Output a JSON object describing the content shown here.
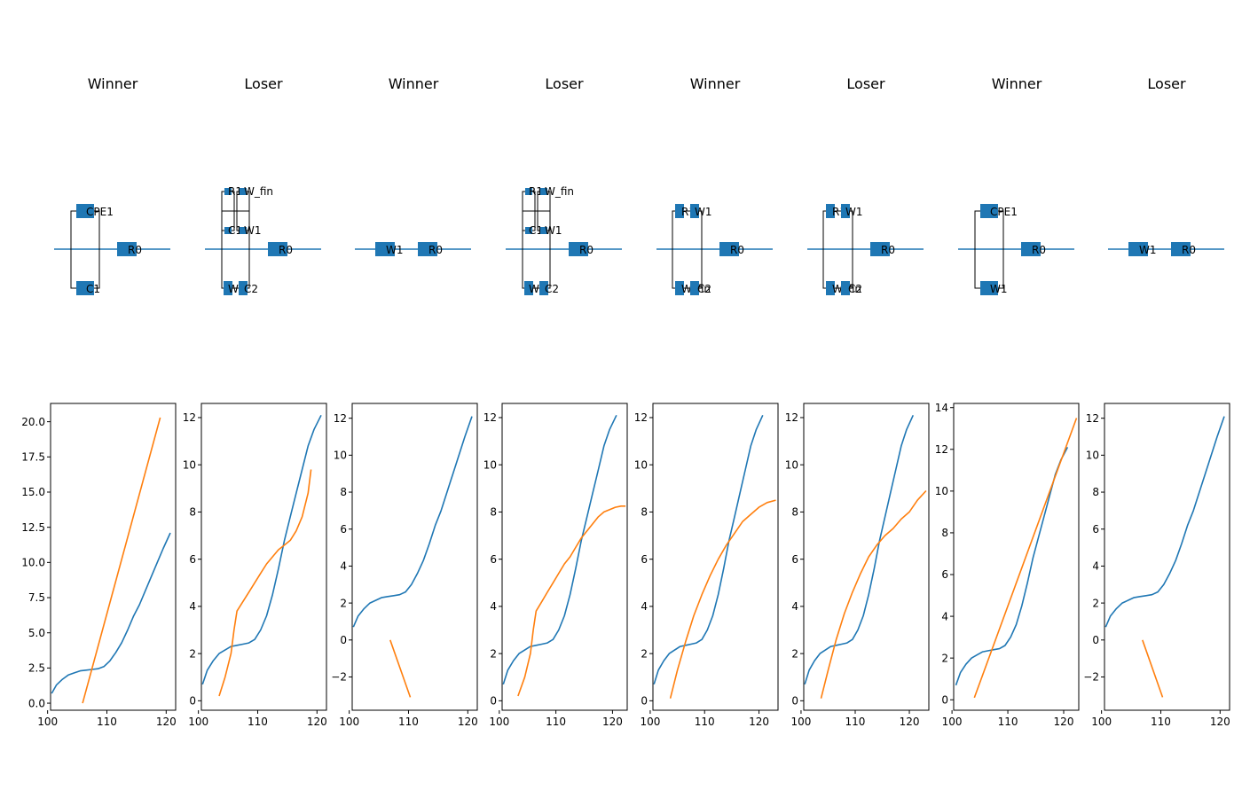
{
  "figure": {
    "colors": {
      "series_a": "#1f77b4",
      "series_b": "#ff7f0e"
    }
  },
  "columns": [
    {
      "title": "Winner",
      "circuit": {
        "topology": "series",
        "elements": [
          {
            "type": "parallel",
            "top": [
              {
                "label": "CPE1"
              }
            ],
            "bottom": [
              {
                "label": "C1"
              }
            ]
          },
          {
            "type": "element",
            "label": "R0"
          }
        ]
      }
    },
    {
      "title": "Loser",
      "circuit": {
        "topology": "series",
        "elements": [
          {
            "type": "parallel",
            "top": [
              {
                "type": "parallel",
                "top": [
                  {
                    "label": "R1"
                  },
                  {
                    "label": "W_fin"
                  }
                ],
                "bottom": [
                  {
                    "label": "C1"
                  },
                  {
                    "label": "W1"
                  }
                ]
              }
            ],
            "bottom": [
              {
                "label": "W2"
              },
              {
                "label": "C2"
              }
            ]
          },
          {
            "type": "element",
            "label": "R0"
          }
        ]
      }
    },
    {
      "title": "Winner",
      "circuit": {
        "topology": "series",
        "elements": [
          {
            "type": "element",
            "label": "W1"
          },
          {
            "type": "element",
            "label": "R0"
          }
        ]
      }
    },
    {
      "title": "Loser",
      "circuit": {
        "topology": "series",
        "elements": [
          {
            "type": "parallel",
            "top": [
              {
                "type": "parallel",
                "top": [
                  {
                    "label": "R1"
                  },
                  {
                    "label": "W_fin"
                  }
                ],
                "bottom": [
                  {
                    "label": "C1"
                  },
                  {
                    "label": "W1"
                  }
                ]
              }
            ],
            "bottom": [
              {
                "label": "W2"
              },
              {
                "label": "C2"
              }
            ]
          },
          {
            "type": "element",
            "label": "R0"
          }
        ]
      }
    },
    {
      "title": "Winner",
      "circuit": {
        "topology": "series",
        "elements": [
          {
            "type": "parallel",
            "top": [
              {
                "label": "R1"
              },
              {
                "label": "W1"
              }
            ],
            "bottom": [
              {
                "label": "W_fin"
              },
              {
                "label": "C2"
              }
            ]
          },
          {
            "type": "element",
            "label": "R0"
          }
        ]
      }
    },
    {
      "title": "Loser",
      "circuit": {
        "topology": "series",
        "elements": [
          {
            "type": "parallel",
            "top": [
              {
                "label": "R1"
              },
              {
                "label": "W1"
              }
            ],
            "bottom": [
              {
                "label": "W_fin"
              },
              {
                "label": "C2"
              }
            ]
          },
          {
            "type": "element",
            "label": "R0"
          }
        ]
      }
    },
    {
      "title": "Winner",
      "circuit": {
        "topology": "series",
        "elements": [
          {
            "type": "parallel",
            "top": [
              {
                "label": "CPE1"
              }
            ],
            "bottom": [
              {
                "label": "W1"
              }
            ]
          },
          {
            "type": "element",
            "label": "R0"
          }
        ]
      }
    },
    {
      "title": "Loser",
      "circuit": {
        "topology": "series",
        "elements": [
          {
            "type": "element",
            "label": "W1"
          },
          {
            "type": "element",
            "label": "R0"
          }
        ]
      }
    }
  ],
  "chart_data": [
    {
      "type": "line",
      "xlim": [
        100.5,
        121.6
      ],
      "ylim": [
        -0.5,
        21.3
      ],
      "xticks": [
        100,
        110,
        120
      ],
      "yticks": [
        0.0,
        2.5,
        5.0,
        7.5,
        10.0,
        12.5,
        15.0,
        17.5,
        20.0
      ],
      "ytick_labels": [
        "0.0",
        "2.5",
        "5.0",
        "7.5",
        "10.0",
        "12.5",
        "15.0",
        "17.5",
        "20.0"
      ],
      "series": [
        {
          "x": [
            100.7,
            101.5,
            102.5,
            103.5,
            104.5,
            105.5,
            106.5,
            107.5,
            108.5,
            109.5,
            110.5,
            111.5,
            112.5,
            113.5,
            114.5,
            115.5,
            116.5,
            117.5,
            118.5,
            119.5,
            120.7
          ],
          "y": [
            0.7,
            1.3,
            1.7,
            2.0,
            2.15,
            2.3,
            2.35,
            2.4,
            2.45,
            2.6,
            3.0,
            3.6,
            4.3,
            5.2,
            6.2,
            7.0,
            8.0,
            9.0,
            10.0,
            11.0,
            12.1
          ]
        },
        {
          "x": [
            105.9,
            119.0
          ],
          "y": [
            0.0,
            20.3
          ]
        }
      ]
    },
    {
      "type": "line",
      "xlim": [
        100.5,
        121.6
      ],
      "ylim": [
        -0.4,
        12.6
      ],
      "xticks": [
        100,
        110,
        120
      ],
      "yticks": [
        0,
        2,
        4,
        6,
        8,
        10,
        12
      ],
      "ytick_labels": [
        "0",
        "2",
        "4",
        "6",
        "8",
        "10",
        "12"
      ],
      "series": [
        {
          "x": [
            100.7,
            101.5,
            102.5,
            103.5,
            104.5,
            105.5,
            106.5,
            107.5,
            108.5,
            109.5,
            110.5,
            111.5,
            112.5,
            113.5,
            114.5,
            115.5,
            116.5,
            117.5,
            118.5,
            119.5,
            120.7
          ],
          "y": [
            0.7,
            1.3,
            1.7,
            2.0,
            2.15,
            2.3,
            2.35,
            2.4,
            2.45,
            2.6,
            3.0,
            3.6,
            4.5,
            5.6,
            6.8,
            7.8,
            8.8,
            9.8,
            10.8,
            11.5,
            12.1
          ]
        },
        {
          "x": [
            103.5,
            104.5,
            105.5,
            106.0,
            106.5,
            107.5,
            108.5,
            109.5,
            110.5,
            111.5,
            112.5,
            113.5,
            114.5,
            115.5,
            116.5,
            117.5,
            118.5,
            119.0
          ],
          "y": [
            0.2,
            1.0,
            2.0,
            3.0,
            3.8,
            4.2,
            4.6,
            5.0,
            5.4,
            5.8,
            6.1,
            6.4,
            6.6,
            6.8,
            7.2,
            7.8,
            8.8,
            9.8
          ]
        }
      ]
    },
    {
      "type": "line",
      "xlim": [
        100.5,
        121.6
      ],
      "ylim": [
        -3.8,
        12.8
      ],
      "xticks": [
        100,
        110,
        120
      ],
      "yticks": [
        -2,
        0,
        2,
        4,
        6,
        8,
        10,
        12
      ],
      "ytick_labels": [
        "−2",
        "0",
        "2",
        "4",
        "6",
        "8",
        "10",
        "12"
      ],
      "series": [
        {
          "x": [
            100.7,
            101.5,
            102.5,
            103.5,
            104.5,
            105.5,
            106.5,
            107.5,
            108.5,
            109.5,
            110.5,
            111.5,
            112.5,
            113.5,
            114.5,
            115.5,
            116.5,
            117.5,
            118.5,
            119.5,
            120.7
          ],
          "y": [
            0.7,
            1.3,
            1.7,
            2.0,
            2.15,
            2.3,
            2.35,
            2.4,
            2.45,
            2.6,
            3.0,
            3.6,
            4.3,
            5.2,
            6.2,
            7.0,
            8.0,
            9.0,
            10.0,
            11.0,
            12.1
          ]
        },
        {
          "x": [
            106.9,
            110.3
          ],
          "y": [
            0.0,
            -3.1
          ]
        }
      ]
    },
    {
      "type": "line",
      "xlim": [
        100.5,
        122.6
      ],
      "ylim": [
        -0.4,
        12.6
      ],
      "xticks": [
        100,
        110,
        120
      ],
      "yticks": [
        0,
        2,
        4,
        6,
        8,
        10,
        12
      ],
      "ytick_labels": [
        "0",
        "2",
        "4",
        "6",
        "8",
        "10",
        "12"
      ],
      "series": [
        {
          "x": [
            100.7,
            101.5,
            102.5,
            103.5,
            104.5,
            105.5,
            106.5,
            107.5,
            108.5,
            109.5,
            110.5,
            111.5,
            112.5,
            113.5,
            114.5,
            115.5,
            116.5,
            117.5,
            118.5,
            119.5,
            120.7
          ],
          "y": [
            0.7,
            1.3,
            1.7,
            2.0,
            2.15,
            2.3,
            2.35,
            2.4,
            2.45,
            2.6,
            3.0,
            3.6,
            4.5,
            5.6,
            6.8,
            7.8,
            8.8,
            9.8,
            10.8,
            11.5,
            12.1
          ]
        },
        {
          "x": [
            103.3,
            104.5,
            105.5,
            106.0,
            106.5,
            107.5,
            108.5,
            109.5,
            110.5,
            111.5,
            112.5,
            113.5,
            114.5,
            115.5,
            116.5,
            117.5,
            118.5,
            119.5,
            120.5,
            121.5,
            122.3
          ],
          "y": [
            0.2,
            1.0,
            2.0,
            3.0,
            3.8,
            4.2,
            4.6,
            5.0,
            5.4,
            5.8,
            6.1,
            6.5,
            6.9,
            7.2,
            7.5,
            7.8,
            8.0,
            8.1,
            8.2,
            8.25,
            8.25
          ]
        }
      ]
    },
    {
      "type": "line",
      "xlim": [
        100.5,
        123.5
      ],
      "ylim": [
        -0.4,
        12.6
      ],
      "xticks": [
        100,
        110,
        120
      ],
      "yticks": [
        0,
        2,
        4,
        6,
        8,
        10,
        12
      ],
      "ytick_labels": [
        "0",
        "2",
        "4",
        "6",
        "8",
        "10",
        "12"
      ],
      "series": [
        {
          "x": [
            100.7,
            101.5,
            102.5,
            103.5,
            104.5,
            105.5,
            106.5,
            107.5,
            108.5,
            109.5,
            110.5,
            111.5,
            112.5,
            113.5,
            114.5,
            115.5,
            116.5,
            117.5,
            118.5,
            119.5,
            120.7
          ],
          "y": [
            0.7,
            1.3,
            1.7,
            2.0,
            2.15,
            2.3,
            2.35,
            2.4,
            2.45,
            2.6,
            3.0,
            3.6,
            4.5,
            5.6,
            6.8,
            7.8,
            8.8,
            9.8,
            10.8,
            11.5,
            12.1
          ]
        },
        {
          "x": [
            103.7,
            105.0,
            106.5,
            108.0,
            109.5,
            111.0,
            112.5,
            114.0,
            115.5,
            117.0,
            118.5,
            120.0,
            121.5,
            123.1
          ],
          "y": [
            0.1,
            1.3,
            2.5,
            3.6,
            4.5,
            5.3,
            6.0,
            6.6,
            7.1,
            7.6,
            7.9,
            8.2,
            8.4,
            8.5
          ]
        }
      ]
    },
    {
      "type": "line",
      "xlim": [
        100.5,
        123.6
      ],
      "ylim": [
        -0.4,
        12.6
      ],
      "xticks": [
        100,
        110,
        120
      ],
      "yticks": [
        0,
        2,
        4,
        6,
        8,
        10,
        12
      ],
      "ytick_labels": [
        "0",
        "2",
        "4",
        "6",
        "8",
        "10",
        "12"
      ],
      "series": [
        {
          "x": [
            100.7,
            101.5,
            102.5,
            103.5,
            104.5,
            105.5,
            106.5,
            107.5,
            108.5,
            109.5,
            110.5,
            111.5,
            112.5,
            113.5,
            114.5,
            115.5,
            116.5,
            117.5,
            118.5,
            119.5,
            120.7
          ],
          "y": [
            0.7,
            1.3,
            1.7,
            2.0,
            2.15,
            2.3,
            2.35,
            2.4,
            2.45,
            2.6,
            3.0,
            3.6,
            4.5,
            5.6,
            6.8,
            7.8,
            8.8,
            9.8,
            10.8,
            11.5,
            12.1
          ]
        },
        {
          "x": [
            103.7,
            105.0,
            106.5,
            108.0,
            109.5,
            111.0,
            112.5,
            114.0,
            115.5,
            117.0,
            118.5,
            120.0,
            121.5,
            123.1
          ],
          "y": [
            0.1,
            1.3,
            2.6,
            3.7,
            4.6,
            5.4,
            6.1,
            6.6,
            7.0,
            7.3,
            7.7,
            8.0,
            8.5,
            8.9
          ]
        }
      ]
    },
    {
      "type": "line",
      "xlim": [
        100.3,
        122.7
      ],
      "ylim": [
        -0.5,
        14.2
      ],
      "xticks": [
        100,
        110,
        120
      ],
      "yticks": [
        0,
        2,
        4,
        6,
        8,
        10,
        12,
        14
      ],
      "ytick_labels": [
        "0",
        "2",
        "4",
        "6",
        "8",
        "10",
        "12",
        "14"
      ],
      "series": [
        {
          "x": [
            100.7,
            101.5,
            102.5,
            103.5,
            104.5,
            105.5,
            106.5,
            107.5,
            108.5,
            109.5,
            110.5,
            111.5,
            112.5,
            113.5,
            114.5,
            115.5,
            116.5,
            117.5,
            118.5,
            119.5,
            120.7
          ],
          "y": [
            0.7,
            1.3,
            1.7,
            2.0,
            2.15,
            2.3,
            2.35,
            2.4,
            2.45,
            2.6,
            3.0,
            3.6,
            4.5,
            5.6,
            6.8,
            7.8,
            8.8,
            9.8,
            10.8,
            11.5,
            12.1
          ]
        },
        {
          "x": [
            104.0,
            122.3
          ],
          "y": [
            0.1,
            13.5
          ]
        }
      ]
    },
    {
      "type": "line",
      "xlim": [
        100.5,
        121.6
      ],
      "ylim": [
        -3.8,
        12.8
      ],
      "xticks": [
        100,
        110,
        120
      ],
      "yticks": [
        -2,
        0,
        2,
        4,
        6,
        8,
        10,
        12
      ],
      "ytick_labels": [
        "−2",
        "0",
        "2",
        "4",
        "6",
        "8",
        "10",
        "12"
      ],
      "series": [
        {
          "x": [
            100.7,
            101.5,
            102.5,
            103.5,
            104.5,
            105.5,
            106.5,
            107.5,
            108.5,
            109.5,
            110.5,
            111.5,
            112.5,
            113.5,
            114.5,
            115.5,
            116.5,
            117.5,
            118.5,
            119.5,
            120.7
          ],
          "y": [
            0.7,
            1.3,
            1.7,
            2.0,
            2.15,
            2.3,
            2.35,
            2.4,
            2.45,
            2.6,
            3.0,
            3.6,
            4.3,
            5.2,
            6.2,
            7.0,
            8.0,
            9.0,
            10.0,
            11.0,
            12.1
          ]
        },
        {
          "x": [
            106.9,
            110.3
          ],
          "y": [
            0.0,
            -3.1
          ]
        }
      ]
    }
  ]
}
